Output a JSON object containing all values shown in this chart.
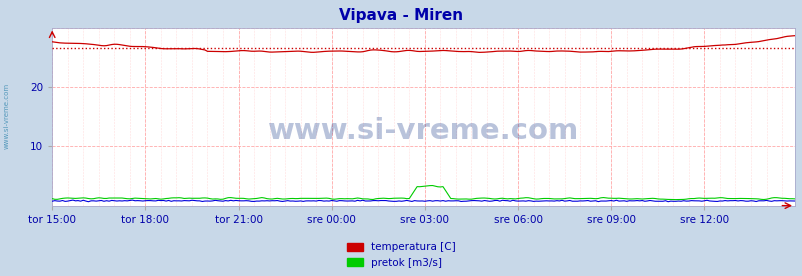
{
  "title": "Vipava - Miren",
  "title_color": "#0000aa",
  "background_color": "#c8d8e8",
  "plot_bg_color": "#ffffff",
  "ylim": [
    0,
    30
  ],
  "x_tick_labels": [
    "tor 15:00",
    "tor 18:00",
    "tor 21:00",
    "sre 00:00",
    "sre 03:00",
    "sre 06:00",
    "sre 09:00",
    "sre 12:00"
  ],
  "total_points": 288,
  "grid_color": "#ffaaaa",
  "fine_grid_color": "#ffdddd",
  "temp_color": "#cc0000",
  "flow_color": "#00cc00",
  "height_color": "#0000dd",
  "avg_line_color": "#cc0000",
  "watermark_text": "www.si-vreme.com",
  "watermark_color": "#1a3a8a",
  "watermark_alpha": 0.3,
  "side_text": "www.si-vreme.com",
  "side_color": "#5599bb",
  "legend_temp_label": "temperatura [C]",
  "legend_flow_label": "pretok [m3/s]",
  "legend_temp_color": "#cc0000",
  "legend_flow_color": "#00cc00",
  "tick_label_color": "#0000aa",
  "tick_fontsize": 7.5
}
